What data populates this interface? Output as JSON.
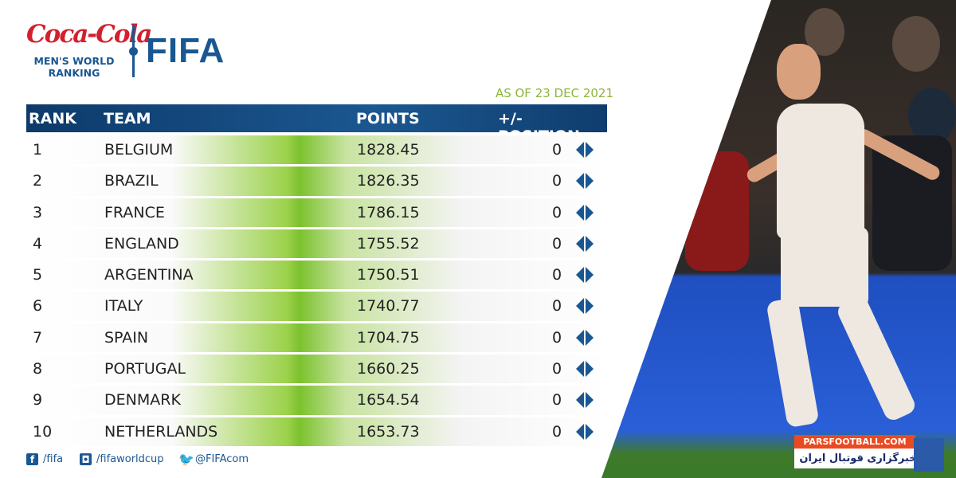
{
  "header": {
    "sponsor": "Coca-Cola",
    "subtitle_line1": "MEN'S WORLD",
    "subtitle_line2": "RANKING",
    "brand": "FIFA",
    "as_of": "AS OF 23 DEC 2021"
  },
  "table": {
    "columns": [
      "RANK",
      "TEAM",
      "POINTS",
      "+/- POSITION"
    ],
    "rows": [
      {
        "rank": "1",
        "team": "BELGIUM",
        "points": "1828.45",
        "change": "0"
      },
      {
        "rank": "2",
        "team": "BRAZIL",
        "points": "1826.35",
        "change": "0"
      },
      {
        "rank": "3",
        "team": "FRANCE",
        "points": "1786.15",
        "change": "0"
      },
      {
        "rank": "4",
        "team": "ENGLAND",
        "points": "1755.52",
        "change": "0"
      },
      {
        "rank": "5",
        "team": "ARGENTINA",
        "points": "1750.51",
        "change": "0"
      },
      {
        "rank": "6",
        "team": "ITALY",
        "points": "1740.77",
        "change": "0"
      },
      {
        "rank": "7",
        "team": "SPAIN",
        "points": "1704.75",
        "change": "0"
      },
      {
        "rank": "8",
        "team": "PORTUGAL",
        "points": "1660.25",
        "change": "0"
      },
      {
        "rank": "9",
        "team": "DENMARK",
        "points": "1654.54",
        "change": "0"
      },
      {
        "rank": "10",
        "team": "NETHERLANDS",
        "points": "1653.73",
        "change": "0"
      }
    ]
  },
  "social": {
    "facebook": "/fifa",
    "instagram": "/fifaworldcup",
    "twitter": "@FIFAcom"
  },
  "watermark": {
    "site": "PARSFOOTBALL.COM",
    "tagline": "خبرگزاری فوتبال ایران"
  },
  "colors": {
    "brand_blue": "#1a5792",
    "accent_green": "#8cb43a",
    "coke_red": "#d2202e"
  }
}
